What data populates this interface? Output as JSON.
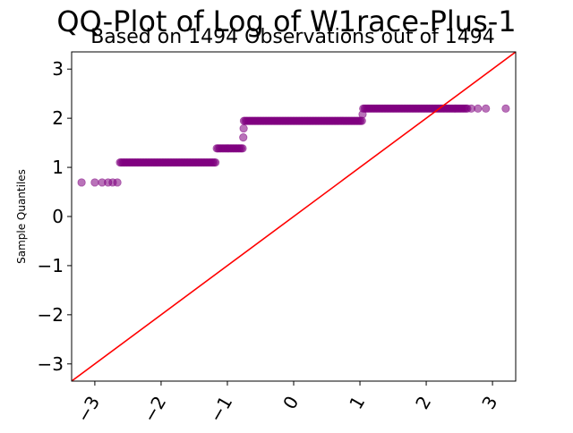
{
  "chart_data": {
    "type": "scatter",
    "title": "QQ-Plot of Log of W1race-Plus-1",
    "subtitle": "Based on 1494 Observations out of 1494",
    "xlabel": "",
    "ylabel": "Sample Quantiles",
    "xlim": [
      -3.35,
      3.35
    ],
    "ylim": [
      -3.35,
      3.35
    ],
    "xticks": [
      -3,
      -2,
      -1,
      0,
      1,
      2,
      3
    ],
    "yticks": [
      -3,
      -2,
      -1,
      0,
      1,
      2,
      3
    ],
    "grid": false,
    "colors": {
      "points": "#800080",
      "reference_line": "#ff0000"
    },
    "reference_line": {
      "slope": 1,
      "intercept": 0
    },
    "point_alpha": 0.55,
    "steps": [
      {
        "y": 0.693,
        "x": [
          -3.2,
          -3.0,
          -2.89,
          -2.8,
          -2.73,
          -2.66
        ]
      },
      {
        "y": 1.099,
        "x_from": -2.62,
        "x_to": -1.18
      },
      {
        "y": 1.386,
        "x_from": -1.16,
        "x_to": -0.77
      },
      {
        "y": 1.609,
        "x": [
          -0.76
        ]
      },
      {
        "y": 1.792,
        "x": [
          -0.755
        ]
      },
      {
        "y": 1.946,
        "x_from": -0.75,
        "x_to": 1.03
      },
      {
        "y": 2.079,
        "x": [
          1.04
        ]
      },
      {
        "y": 2.197,
        "x_from": 1.05,
        "x_to": 2.62
      },
      {
        "y": 2.197,
        "x": [
          2.68,
          2.78,
          2.9,
          3.2
        ]
      }
    ]
  }
}
